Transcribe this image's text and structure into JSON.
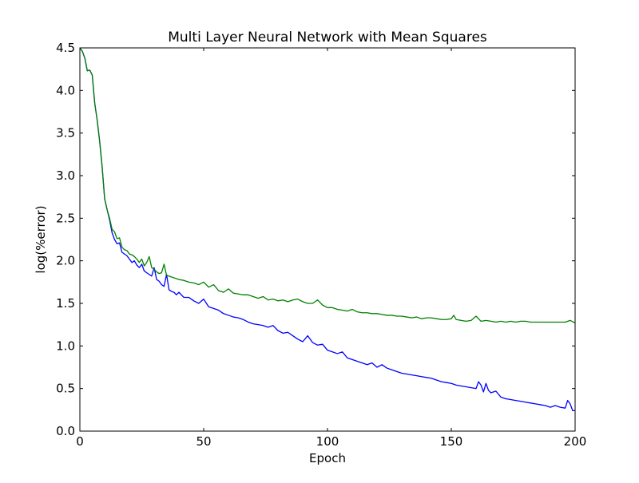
{
  "chart_data": {
    "type": "line",
    "title": "Multi Layer Neural Network with Mean Squares",
    "xlabel": "Epoch",
    "ylabel": "log(%error)",
    "xlim": [
      0,
      200
    ],
    "ylim": [
      0.0,
      4.5
    ],
    "grid": false,
    "legend": null,
    "x_ticks": [
      0,
      50,
      100,
      150,
      200
    ],
    "x_tick_labels": [
      "0",
      "50",
      "100",
      "150",
      "200"
    ],
    "y_ticks": [
      0.0,
      0.5,
      1.0,
      1.5,
      2.0,
      2.5,
      3.0,
      3.5,
      4.0,
      4.5
    ],
    "y_tick_labels": [
      "0.0",
      "0.5",
      "1.0",
      "1.5",
      "2.0",
      "2.5",
      "3.0",
      "3.5",
      "4.0",
      "4.5"
    ],
    "series": [
      {
        "color": "#0000ff",
        "x": [
          0,
          1,
          2,
          3,
          4,
          5,
          6,
          7,
          8,
          9,
          10,
          11,
          12,
          13,
          14,
          15,
          16,
          17,
          18,
          19,
          20,
          21,
          22,
          23,
          24,
          25,
          26,
          27,
          28,
          29,
          30,
          31,
          32,
          33,
          34,
          35,
          36,
          37,
          38,
          39,
          40,
          42,
          44,
          46,
          48,
          50,
          52,
          54,
          56,
          58,
          60,
          62,
          64,
          66,
          68,
          70,
          72,
          74,
          76,
          78,
          80,
          82,
          84,
          86,
          88,
          90,
          92,
          94,
          96,
          98,
          100,
          102,
          104,
          106,
          108,
          110,
          112,
          114,
          116,
          118,
          120,
          122,
          124,
          126,
          128,
          130,
          132,
          134,
          136,
          138,
          140,
          142,
          144,
          146,
          148,
          150,
          152,
          154,
          156,
          158,
          160,
          161,
          162,
          163,
          164,
          165,
          166,
          168,
          170,
          172,
          174,
          176,
          178,
          180,
          182,
          184,
          186,
          188,
          190,
          192,
          194,
          196,
          197,
          198,
          199,
          200
        ],
        "y": [
          4.5,
          4.46,
          4.38,
          4.23,
          4.24,
          4.18,
          3.85,
          3.65,
          3.4,
          3.1,
          2.73,
          2.6,
          2.48,
          2.33,
          2.25,
          2.2,
          2.21,
          2.1,
          2.08,
          2.06,
          2.02,
          1.98,
          2.0,
          1.95,
          1.92,
          1.96,
          1.88,
          1.86,
          1.84,
          1.82,
          1.92,
          1.78,
          1.76,
          1.72,
          1.7,
          1.84,
          1.66,
          1.64,
          1.63,
          1.6,
          1.63,
          1.57,
          1.57,
          1.53,
          1.5,
          1.55,
          1.46,
          1.44,
          1.42,
          1.38,
          1.36,
          1.34,
          1.33,
          1.31,
          1.28,
          1.26,
          1.25,
          1.24,
          1.22,
          1.24,
          1.18,
          1.15,
          1.16,
          1.12,
          1.08,
          1.05,
          1.12,
          1.04,
          1.01,
          1.02,
          0.95,
          0.93,
          0.91,
          0.93,
          0.86,
          0.84,
          0.82,
          0.8,
          0.78,
          0.8,
          0.75,
          0.78,
          0.74,
          0.72,
          0.7,
          0.68,
          0.67,
          0.66,
          0.65,
          0.64,
          0.63,
          0.62,
          0.6,
          0.58,
          0.57,
          0.56,
          0.54,
          0.53,
          0.52,
          0.51,
          0.5,
          0.58,
          0.54,
          0.46,
          0.56,
          0.48,
          0.45,
          0.47,
          0.4,
          0.38,
          0.37,
          0.36,
          0.35,
          0.34,
          0.33,
          0.32,
          0.31,
          0.3,
          0.28,
          0.3,
          0.28,
          0.27,
          0.36,
          0.32,
          0.24,
          0.24
        ]
      },
      {
        "color": "#008000",
        "x": [
          0,
          1,
          2,
          3,
          4,
          5,
          6,
          7,
          8,
          9,
          10,
          11,
          12,
          13,
          14,
          15,
          16,
          17,
          18,
          19,
          20,
          21,
          22,
          23,
          24,
          25,
          26,
          27,
          28,
          29,
          30,
          31,
          32,
          33,
          34,
          35,
          36,
          38,
          40,
          42,
          44,
          46,
          48,
          50,
          52,
          54,
          56,
          58,
          60,
          62,
          64,
          66,
          68,
          70,
          72,
          74,
          76,
          78,
          80,
          82,
          84,
          86,
          88,
          90,
          92,
          94,
          96,
          98,
          100,
          102,
          104,
          106,
          108,
          110,
          112,
          114,
          116,
          118,
          120,
          122,
          124,
          126,
          128,
          130,
          132,
          134,
          136,
          138,
          140,
          142,
          144,
          146,
          148,
          150,
          151,
          152,
          154,
          156,
          158,
          160,
          162,
          164,
          166,
          168,
          170,
          172,
          174,
          176,
          178,
          180,
          182,
          184,
          186,
          188,
          190,
          192,
          194,
          196,
          198,
          200
        ],
        "y": [
          4.5,
          4.46,
          4.38,
          4.23,
          4.24,
          4.18,
          3.85,
          3.65,
          3.4,
          3.1,
          2.73,
          2.6,
          2.5,
          2.37,
          2.34,
          2.26,
          2.27,
          2.16,
          2.13,
          2.12,
          2.08,
          2.07,
          2.05,
          2.02,
          1.98,
          2.02,
          1.94,
          1.98,
          2.05,
          1.92,
          1.9,
          1.87,
          1.85,
          1.86,
          1.96,
          1.83,
          1.82,
          1.8,
          1.78,
          1.77,
          1.75,
          1.74,
          1.72,
          1.75,
          1.69,
          1.72,
          1.65,
          1.63,
          1.67,
          1.62,
          1.61,
          1.6,
          1.6,
          1.58,
          1.56,
          1.58,
          1.54,
          1.55,
          1.53,
          1.54,
          1.52,
          1.54,
          1.55,
          1.52,
          1.5,
          1.5,
          1.54,
          1.48,
          1.45,
          1.45,
          1.43,
          1.42,
          1.41,
          1.43,
          1.4,
          1.39,
          1.39,
          1.38,
          1.38,
          1.37,
          1.36,
          1.36,
          1.35,
          1.35,
          1.34,
          1.33,
          1.34,
          1.32,
          1.33,
          1.33,
          1.32,
          1.31,
          1.31,
          1.32,
          1.36,
          1.31,
          1.3,
          1.29,
          1.3,
          1.35,
          1.29,
          1.3,
          1.29,
          1.28,
          1.29,
          1.28,
          1.29,
          1.28,
          1.29,
          1.29,
          1.28,
          1.28,
          1.28,
          1.28,
          1.28,
          1.28,
          1.28,
          1.28,
          1.3,
          1.27
        ]
      }
    ]
  }
}
